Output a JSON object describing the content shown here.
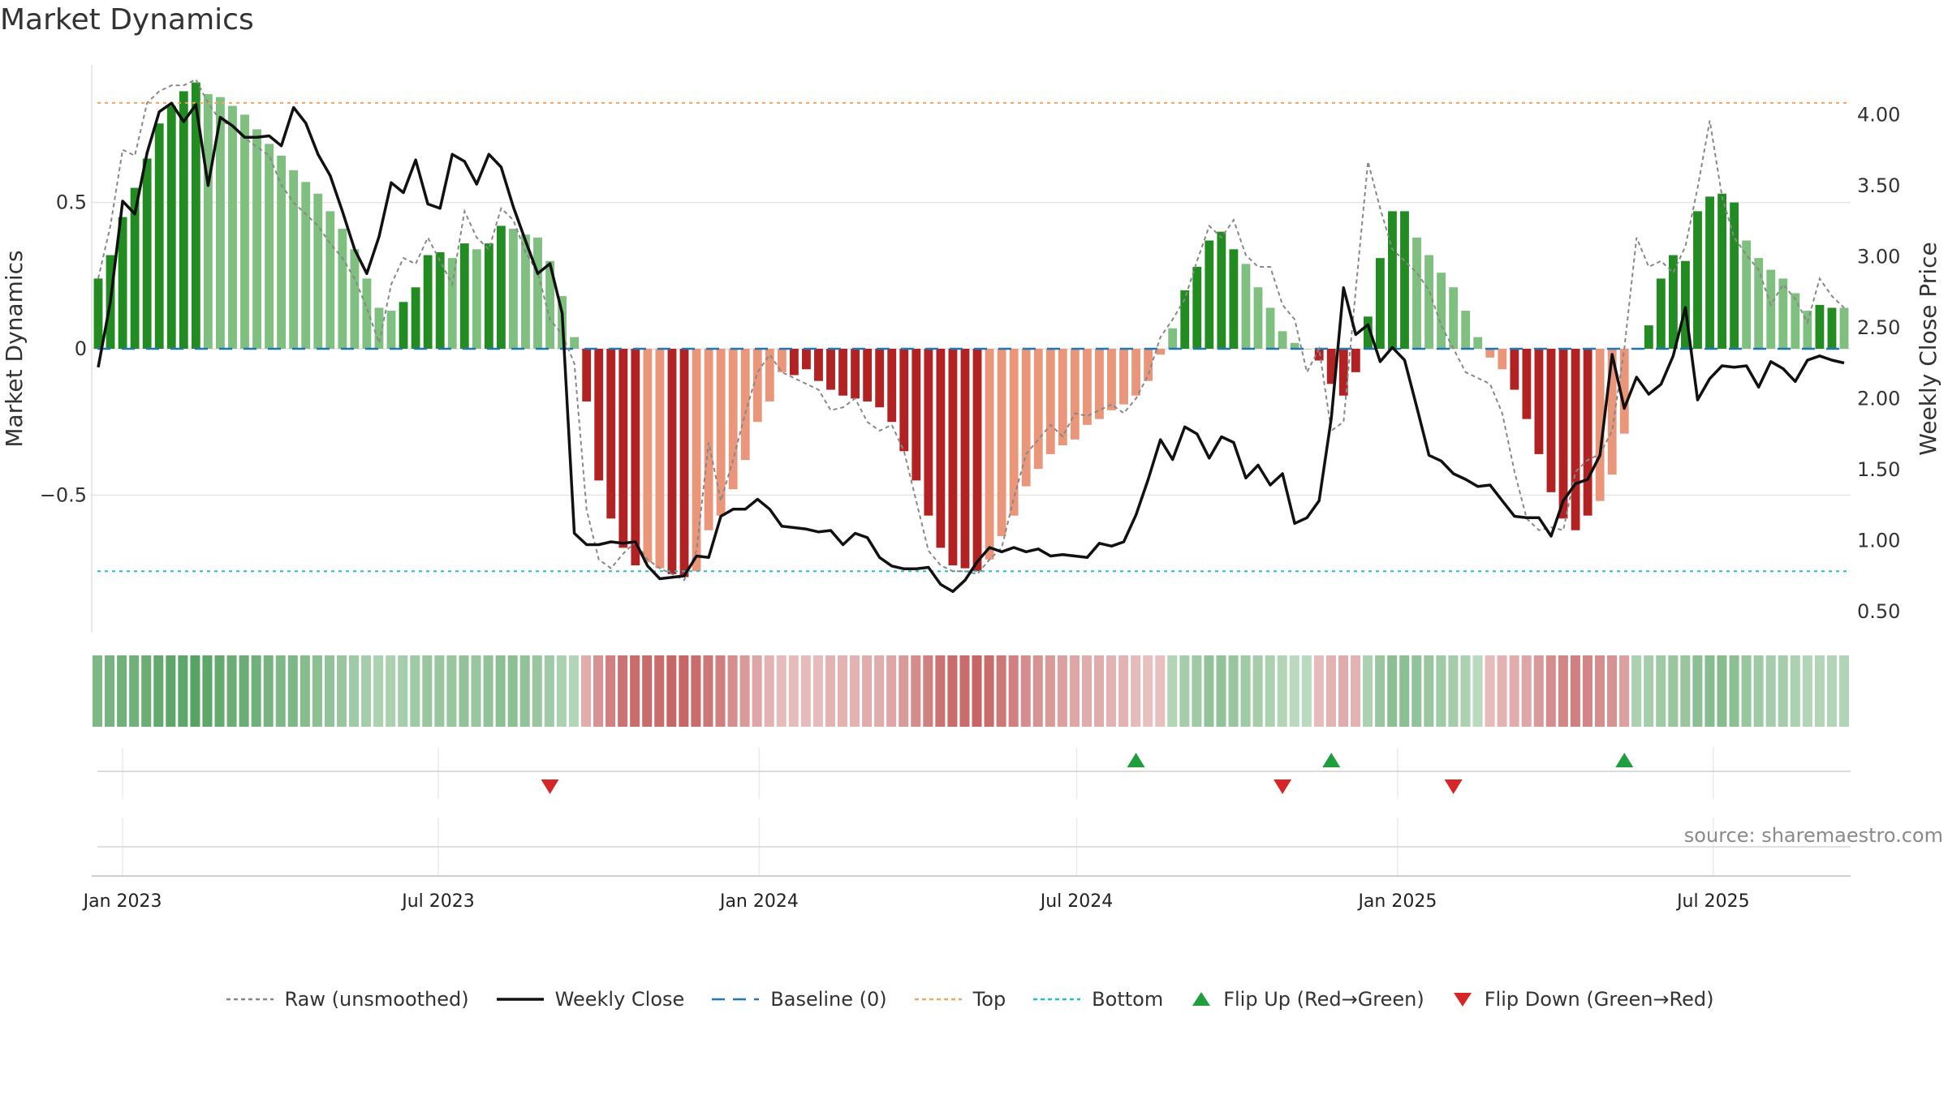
{
  "title": "Market Dynamics",
  "source": "source: sharemaestro.com",
  "colors": {
    "strong_green": "#228b22",
    "light_green": "#7fbf7f",
    "strong_red": "#b22222",
    "light_red": "#e9967a",
    "close_line": "#111111",
    "raw_line": "#888888",
    "baseline": "#1f77b4",
    "top_line": "#f4a460",
    "bottom_line": "#20c0c8",
    "flip_up": "#1e9e3c",
    "flip_down": "#d62728"
  },
  "legend": [
    {
      "label": "Raw (unsmoothed)",
      "icon": "dotted-line",
      "color": "#888888"
    },
    {
      "label": "Weekly Close",
      "icon": "solid-line",
      "color": "#111111"
    },
    {
      "label": "Baseline (0)",
      "icon": "dashed-line",
      "color": "#1f77b4"
    },
    {
      "label": "Top",
      "icon": "dotted-line",
      "color": "#f4a460"
    },
    {
      "label": "Bottom",
      "icon": "dotted-line",
      "color": "#20c0c8"
    },
    {
      "label": "Flip Up (Red→Green)",
      "icon": "triangle-up",
      "color": "#1e9e3c"
    },
    {
      "label": "Flip Down (Green→Red)",
      "icon": "triangle-down",
      "color": "#d62728"
    }
  ],
  "chart_data": {
    "type": "bar",
    "title": "Market Dynamics",
    "ylabel": "Market Dynamics",
    "y2label": "Weekly Close Price",
    "ylim": [
      -0.97,
      0.97
    ],
    "y2lim": [
      0.35,
      4.35
    ],
    "yticks": [
      {
        "value": 0.5,
        "label": "0.5"
      },
      {
        "value": 0,
        "label": "0"
      },
      {
        "value": -0.5,
        "label": "−0.5"
      }
    ],
    "y2ticks": [
      {
        "value": 4.0,
        "label": "4.00"
      },
      {
        "value": 3.5,
        "label": "3.50"
      },
      {
        "value": 3.0,
        "label": "3.00"
      },
      {
        "value": 2.5,
        "label": "2.50"
      },
      {
        "value": 2.0,
        "label": "2.00"
      },
      {
        "value": 1.5,
        "label": "1.50"
      },
      {
        "value": 1.0,
        "label": "1.00"
      },
      {
        "value": 0.5,
        "label": "0.50"
      }
    ],
    "xticks": [
      "Jan 2023",
      "Jul 2023",
      "Jan 2024",
      "Jul 2024",
      "Jan 2025",
      "Jul 2025"
    ],
    "top_level": 0.84,
    "bottom_level": -0.76,
    "baseline": 0,
    "grid": true,
    "legend_position": "bottom",
    "start_date": "2022-12-18",
    "bar_values": [
      0.24,
      0.32,
      0.45,
      0.55,
      0.65,
      0.77,
      0.83,
      0.88,
      0.91,
      0.87,
      0.86,
      0.83,
      0.8,
      0.75,
      0.7,
      0.66,
      0.61,
      0.57,
      0.53,
      0.47,
      0.41,
      0.34,
      0.24,
      0.14,
      0.13,
      0.16,
      0.21,
      0.32,
      0.33,
      0.31,
      0.36,
      0.34,
      0.36,
      0.42,
      0.41,
      0.39,
      0.38,
      0.3,
      0.18,
      0.04,
      -0.18,
      -0.45,
      -0.58,
      -0.68,
      -0.74,
      -0.73,
      -0.75,
      -0.77,
      -0.78,
      -0.76,
      -0.62,
      -0.57,
      -0.48,
      -0.38,
      -0.25,
      -0.18,
      -0.08,
      -0.09,
      -0.07,
      -0.11,
      -0.14,
      -0.16,
      -0.17,
      -0.18,
      -0.2,
      -0.25,
      -0.35,
      -0.45,
      -0.57,
      -0.68,
      -0.74,
      -0.75,
      -0.76,
      -0.72,
      -0.64,
      -0.57,
      -0.47,
      -0.41,
      -0.36,
      -0.33,
      -0.31,
      -0.26,
      -0.24,
      -0.21,
      -0.19,
      -0.16,
      -0.11,
      -0.02,
      0.07,
      0.2,
      0.28,
      0.37,
      0.4,
      0.34,
      0.29,
      0.21,
      0.14,
      0.06,
      0.02,
      0.0,
      -0.04,
      -0.12,
      -0.16,
      -0.08,
      0.11,
      0.31,
      0.47,
      0.47,
      0.38,
      0.32,
      0.26,
      0.21,
      0.13,
      0.04,
      -0.03,
      -0.07,
      -0.14,
      -0.24,
      -0.36,
      -0.49,
      -0.58,
      -0.62,
      -0.57,
      -0.52,
      -0.43,
      -0.29,
      0.0,
      0.08,
      0.24,
      0.32,
      0.3,
      0.47,
      0.52,
      0.53,
      0.5,
      0.37,
      0.31,
      0.27,
      0.24,
      0.19,
      0.13,
      0.15,
      0.14,
      0.14
    ],
    "strong_flags": [
      1,
      1,
      1,
      1,
      1,
      1,
      1,
      1,
      1,
      0,
      0,
      0,
      0,
      0,
      0,
      0,
      0,
      0,
      0,
      0,
      0,
      0,
      0,
      0,
      0,
      1,
      1,
      1,
      1,
      0,
      1,
      0,
      1,
      1,
      0,
      0,
      0,
      0,
      0,
      0,
      1,
      1,
      1,
      1,
      1,
      0,
      0,
      1,
      1,
      0,
      0,
      0,
      0,
      0,
      0,
      0,
      0,
      1,
      1,
      1,
      1,
      1,
      1,
      1,
      1,
      1,
      1,
      1,
      1,
      1,
      1,
      1,
      1,
      0,
      0,
      0,
      0,
      0,
      0,
      0,
      0,
      0,
      0,
      0,
      0,
      0,
      0,
      0,
      0,
      1,
      1,
      1,
      1,
      1,
      0,
      0,
      0,
      0,
      0,
      0,
      1,
      1,
      1,
      1,
      1,
      1,
      1,
      1,
      0,
      0,
      0,
      0,
      0,
      0,
      0,
      0,
      1,
      1,
      1,
      1,
      1,
      1,
      1,
      0,
      0,
      0,
      0,
      1,
      1,
      1,
      1,
      1,
      1,
      1,
      1,
      0,
      0,
      0,
      0,
      0,
      0,
      1,
      1,
      0
    ],
    "raw_values": [
      0.24,
      0.42,
      0.68,
      0.66,
      0.84,
      0.88,
      0.9,
      0.9,
      0.92,
      0.84,
      0.78,
      0.76,
      0.72,
      0.69,
      0.66,
      0.56,
      0.5,
      0.46,
      0.42,
      0.36,
      0.31,
      0.24,
      0.14,
      0.02,
      0.22,
      0.31,
      0.29,
      0.38,
      0.3,
      0.22,
      0.47,
      0.38,
      0.34,
      0.48,
      0.44,
      0.33,
      0.26,
      0.1,
      0.05,
      -0.05,
      -0.55,
      -0.72,
      -0.75,
      -0.7,
      -0.66,
      -0.72,
      -0.75,
      -0.77,
      -0.79,
      -0.69,
      -0.32,
      -0.52,
      -0.38,
      -0.22,
      -0.08,
      -0.02,
      -0.08,
      -0.1,
      -0.12,
      -0.14,
      -0.21,
      -0.2,
      -0.17,
      -0.25,
      -0.28,
      -0.26,
      -0.35,
      -0.52,
      -0.69,
      -0.74,
      -0.76,
      -0.76,
      -0.77,
      -0.72,
      -0.68,
      -0.51,
      -0.36,
      -0.31,
      -0.26,
      -0.3,
      -0.22,
      -0.23,
      -0.21,
      -0.19,
      -0.22,
      -0.17,
      -0.09,
      0.04,
      0.1,
      0.17,
      0.3,
      0.42,
      0.38,
      0.44,
      0.32,
      0.28,
      0.28,
      0.15,
      0.1,
      -0.08,
      0.0,
      -0.28,
      -0.25,
      0.2,
      0.64,
      0.48,
      0.34,
      0.3,
      0.26,
      0.2,
      0.08,
      0.0,
      -0.08,
      -0.1,
      -0.12,
      -0.22,
      -0.42,
      -0.58,
      -0.62,
      -0.61,
      -0.62,
      -0.42,
      -0.38,
      -0.36,
      -0.28,
      0.0,
      0.38,
      0.28,
      0.3,
      0.26,
      0.35,
      0.55,
      0.78,
      0.52,
      0.38,
      0.32,
      0.27,
      0.15,
      0.22,
      0.17,
      0.09,
      0.24,
      0.18,
      0.14
    ],
    "close_prices": [
      2.22,
      2.68,
      3.39,
      3.3,
      3.73,
      4.02,
      4.08,
      3.95,
      4.07,
      3.5,
      3.98,
      3.92,
      3.84,
      3.84,
      3.85,
      3.78,
      4.05,
      3.94,
      3.72,
      3.57,
      3.32,
      3.05,
      2.88,
      3.14,
      3.52,
      3.45,
      3.68,
      3.37,
      3.34,
      3.72,
      3.67,
      3.51,
      3.72,
      3.63,
      3.35,
      3.11,
      2.88,
      2.95,
      2.6,
      1.05,
      0.97,
      0.97,
      0.99,
      0.98,
      0.99,
      0.82,
      0.73,
      0.74,
      0.75,
      0.89,
      0.88,
      1.17,
      1.22,
      1.22,
      1.29,
      1.22,
      1.1,
      1.09,
      1.08,
      1.06,
      1.07,
      0.97,
      1.05,
      1.02,
      0.88,
      0.82,
      0.8,
      0.8,
      0.81,
      0.69,
      0.64,
      0.72,
      0.85,
      0.95,
      0.92,
      0.95,
      0.92,
      0.94,
      0.89,
      0.9,
      0.89,
      0.88,
      0.98,
      0.96,
      0.99,
      1.18,
      1.43,
      1.71,
      1.57,
      1.8,
      1.75,
      1.58,
      1.73,
      1.69,
      1.44,
      1.53,
      1.39,
      1.47,
      1.12,
      1.16,
      1.28,
      1.86,
      2.78,
      2.45,
      2.52,
      2.26,
      2.36,
      2.27,
      1.94,
      1.6,
      1.56,
      1.47,
      1.43,
      1.38,
      1.39,
      1.28,
      1.17,
      1.16,
      1.16,
      1.03,
      1.28,
      1.4,
      1.43,
      1.6,
      2.31,
      1.93,
      2.15,
      2.03,
      2.1,
      2.3,
      2.64,
      1.99,
      2.14,
      2.23,
      2.22,
      2.23,
      2.08,
      2.26,
      2.21,
      2.12,
      2.27,
      2.3,
      2.27,
      2.25
    ],
    "heat_bands": [
      0.7,
      0.75,
      0.8,
      0.8,
      0.85,
      0.9,
      0.95,
      0.95,
      1,
      0.95,
      0.9,
      0.85,
      0.85,
      0.8,
      0.75,
      0.7,
      0.7,
      0.65,
      0.6,
      0.55,
      0.5,
      0.45,
      0.4,
      0.35,
      0.35,
      0.4,
      0.45,
      0.5,
      0.5,
      0.5,
      0.55,
      0.5,
      0.55,
      0.6,
      0.6,
      0.55,
      0.5,
      0.45,
      0.35,
      0.3,
      0.35,
      0.55,
      0.7,
      0.8,
      0.85,
      0.85,
      0.85,
      0.9,
      0.9,
      0.85,
      0.75,
      0.7,
      0.6,
      0.5,
      0.4,
      0.3,
      0.25,
      0.25,
      0.25,
      0.25,
      0.3,
      0.3,
      0.3,
      0.35,
      0.35,
      0.4,
      0.5,
      0.6,
      0.7,
      0.8,
      0.85,
      0.85,
      0.9,
      0.85,
      0.75,
      0.7,
      0.6,
      0.55,
      0.5,
      0.45,
      0.4,
      0.35,
      0.35,
      0.3,
      0.3,
      0.25,
      0.2,
      0.2,
      0.3,
      0.4,
      0.45,
      0.55,
      0.55,
      0.5,
      0.45,
      0.4,
      0.35,
      0.3,
      0.25,
      0.25,
      0.25,
      0.3,
      0.35,
      0.3,
      0.35,
      0.5,
      0.6,
      0.6,
      0.55,
      0.5,
      0.45,
      0.4,
      0.35,
      0.25,
      0.25,
      0.3,
      0.35,
      0.4,
      0.5,
      0.6,
      0.65,
      0.7,
      0.65,
      0.6,
      0.55,
      0.45,
      0.35,
      0.4,
      0.45,
      0.5,
      0.5,
      0.6,
      0.65,
      0.65,
      0.6,
      0.5,
      0.45,
      0.4,
      0.4,
      0.35,
      0.3,
      0.3,
      0.3,
      0.3
    ],
    "flip_ups": [
      {
        "date": "2024-08-04"
      },
      {
        "date": "2024-11-24"
      },
      {
        "date": "2025-05-11"
      }
    ],
    "flip_downs": [
      {
        "date": "2023-09-03"
      },
      {
        "date": "2024-10-27"
      },
      {
        "date": "2025-02-02"
      }
    ]
  }
}
